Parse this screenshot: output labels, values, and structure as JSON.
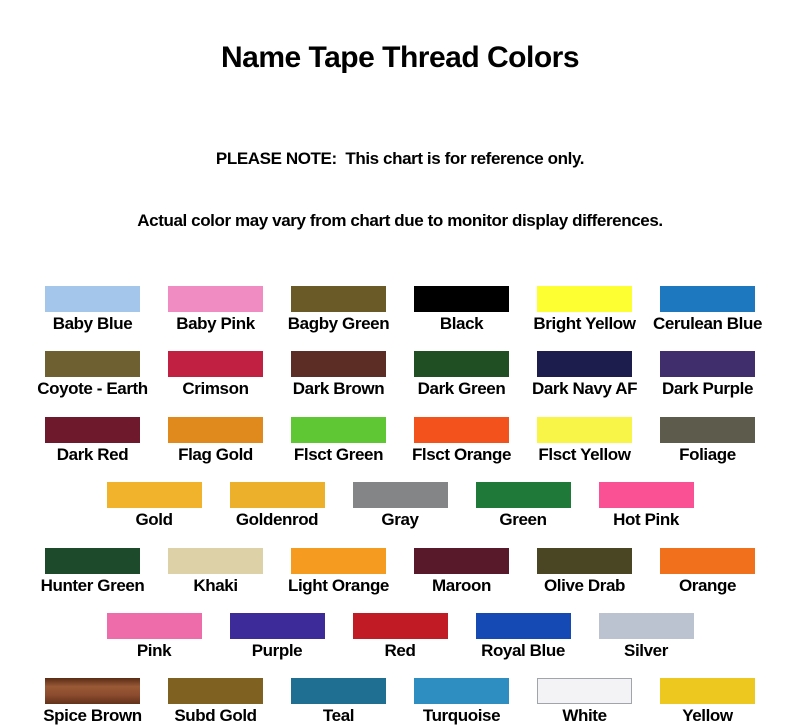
{
  "page": {
    "title": "Name Tape Thread Colors",
    "note_line1": "PLEASE NOTE:  This chart is for reference only.",
    "note_line2": "Actual color may vary from chart due to monitor display differences."
  },
  "chart": {
    "rows": [
      {
        "items": [
          {
            "label": "Baby Blue",
            "color": "#a5c6eb"
          },
          {
            "label": "Baby Pink",
            "color": "#f08cc2"
          },
          {
            "label": "Bagby Green",
            "color": "#6a5a28"
          },
          {
            "label": "Black",
            "color": "#000000"
          },
          {
            "label": "Bright Yellow",
            "color": "#feff33"
          },
          {
            "label": "Cerulean Blue",
            "color": "#1e78c0"
          }
        ]
      },
      {
        "items": [
          {
            "label": "Coyote - Earth",
            "color": "#6e6030"
          },
          {
            "label": "Crimson",
            "color": "#c22043"
          },
          {
            "label": "Dark Brown",
            "color": "#5c2d24"
          },
          {
            "label": "Dark Green",
            "color": "#1f4f22"
          },
          {
            "label": "Dark Navy AF",
            "color": "#1d1d4d"
          },
          {
            "label": "Dark Purple",
            "color": "#3f2e6b"
          }
        ]
      },
      {
        "items": [
          {
            "label": "Dark Red",
            "color": "#6e1a2c"
          },
          {
            "label": "Flag Gold",
            "color": "#e08a1e"
          },
          {
            "label": "Flsct Green",
            "color": "#5fc634"
          },
          {
            "label": "Flsct Orange",
            "color": "#f4521c"
          },
          {
            "label": "Flsct Yellow",
            "color": "#f8f548"
          },
          {
            "label": "Foliage",
            "color": "#5d5b4b"
          }
        ]
      },
      {
        "items": [
          {
            "label": "Gold",
            "color": "#f0b32b"
          },
          {
            "label": "Goldenrod",
            "color": "#edb02a"
          },
          {
            "label": "Gray",
            "color": "#838587"
          },
          {
            "label": "Green",
            "color": "#1f7a3a"
          },
          {
            "label": "Hot Pink",
            "color": "#f95193"
          }
        ]
      },
      {
        "items": [
          {
            "label": "Hunter Green",
            "color": "#1c4a2b"
          },
          {
            "label": "Khaki",
            "color": "#ddd1a8"
          },
          {
            "label": "Light Orange",
            "color": "#f49b20"
          },
          {
            "label": "Maroon",
            "color": "#581a2b"
          },
          {
            "label": "Olive Drab",
            "color": "#4a4522"
          },
          {
            "label": "Orange",
            "color": "#f1701c"
          }
        ]
      },
      {
        "items": [
          {
            "label": "Pink",
            "color": "#ee6ca9"
          },
          {
            "label": "Purple",
            "color": "#3c2b99"
          },
          {
            "label": "Red",
            "color": "#c11c26"
          },
          {
            "label": "Royal Blue",
            "color": "#1549b4"
          },
          {
            "label": "Silver",
            "color": "#bac3cf"
          }
        ]
      },
      {
        "items": [
          {
            "label": "Spice Brown",
            "color": "#8a4a2e",
            "gradient": [
              "#582b15",
              "#9a5a36",
              "#8a4a2e",
              "#62321a"
            ]
          },
          {
            "label": "Subd Gold",
            "color": "#7f6222"
          },
          {
            "label": "Teal",
            "color": "#1e6f92"
          },
          {
            "label": "Turquoise",
            "color": "#2e8ec2"
          },
          {
            "label": "White",
            "color": "#f3f3f5",
            "border": "#a0a4ac"
          },
          {
            "label": "Yellow",
            "color": "#edc81e"
          }
        ]
      }
    ]
  }
}
